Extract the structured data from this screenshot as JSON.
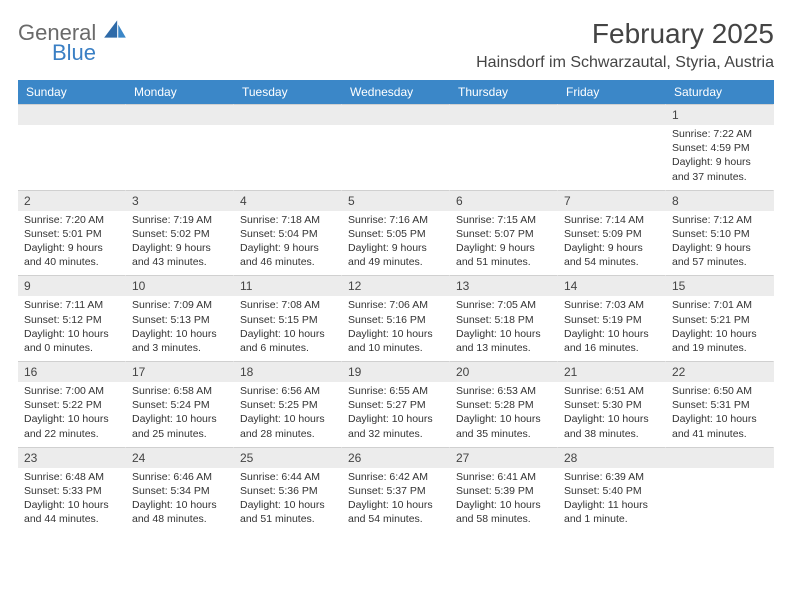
{
  "logo": {
    "text1": "General",
    "text2": "Blue"
  },
  "title": "February 2025",
  "location": "Hainsdorf im Schwarzautal, Styria, Austria",
  "colors": {
    "header_bg": "#3b87c8",
    "header_fg": "#ffffff",
    "numrow_bg": "#ececec",
    "text": "#333333",
    "title": "#444444"
  },
  "day_headers": [
    "Sunday",
    "Monday",
    "Tuesday",
    "Wednesday",
    "Thursday",
    "Friday",
    "Saturday"
  ],
  "weeks": [
    [
      {
        "n": "",
        "sr": "",
        "ss": "",
        "dl": ""
      },
      {
        "n": "",
        "sr": "",
        "ss": "",
        "dl": ""
      },
      {
        "n": "",
        "sr": "",
        "ss": "",
        "dl": ""
      },
      {
        "n": "",
        "sr": "",
        "ss": "",
        "dl": ""
      },
      {
        "n": "",
        "sr": "",
        "ss": "",
        "dl": ""
      },
      {
        "n": "",
        "sr": "",
        "ss": "",
        "dl": ""
      },
      {
        "n": "1",
        "sr": "Sunrise: 7:22 AM",
        "ss": "Sunset: 4:59 PM",
        "dl": "Daylight: 9 hours and 37 minutes."
      }
    ],
    [
      {
        "n": "2",
        "sr": "Sunrise: 7:20 AM",
        "ss": "Sunset: 5:01 PM",
        "dl": "Daylight: 9 hours and 40 minutes."
      },
      {
        "n": "3",
        "sr": "Sunrise: 7:19 AM",
        "ss": "Sunset: 5:02 PM",
        "dl": "Daylight: 9 hours and 43 minutes."
      },
      {
        "n": "4",
        "sr": "Sunrise: 7:18 AM",
        "ss": "Sunset: 5:04 PM",
        "dl": "Daylight: 9 hours and 46 minutes."
      },
      {
        "n": "5",
        "sr": "Sunrise: 7:16 AM",
        "ss": "Sunset: 5:05 PM",
        "dl": "Daylight: 9 hours and 49 minutes."
      },
      {
        "n": "6",
        "sr": "Sunrise: 7:15 AM",
        "ss": "Sunset: 5:07 PM",
        "dl": "Daylight: 9 hours and 51 minutes."
      },
      {
        "n": "7",
        "sr": "Sunrise: 7:14 AM",
        "ss": "Sunset: 5:09 PM",
        "dl": "Daylight: 9 hours and 54 minutes."
      },
      {
        "n": "8",
        "sr": "Sunrise: 7:12 AM",
        "ss": "Sunset: 5:10 PM",
        "dl": "Daylight: 9 hours and 57 minutes."
      }
    ],
    [
      {
        "n": "9",
        "sr": "Sunrise: 7:11 AM",
        "ss": "Sunset: 5:12 PM",
        "dl": "Daylight: 10 hours and 0 minutes."
      },
      {
        "n": "10",
        "sr": "Sunrise: 7:09 AM",
        "ss": "Sunset: 5:13 PM",
        "dl": "Daylight: 10 hours and 3 minutes."
      },
      {
        "n": "11",
        "sr": "Sunrise: 7:08 AM",
        "ss": "Sunset: 5:15 PM",
        "dl": "Daylight: 10 hours and 6 minutes."
      },
      {
        "n": "12",
        "sr": "Sunrise: 7:06 AM",
        "ss": "Sunset: 5:16 PM",
        "dl": "Daylight: 10 hours and 10 minutes."
      },
      {
        "n": "13",
        "sr": "Sunrise: 7:05 AM",
        "ss": "Sunset: 5:18 PM",
        "dl": "Daylight: 10 hours and 13 minutes."
      },
      {
        "n": "14",
        "sr": "Sunrise: 7:03 AM",
        "ss": "Sunset: 5:19 PM",
        "dl": "Daylight: 10 hours and 16 minutes."
      },
      {
        "n": "15",
        "sr": "Sunrise: 7:01 AM",
        "ss": "Sunset: 5:21 PM",
        "dl": "Daylight: 10 hours and 19 minutes."
      }
    ],
    [
      {
        "n": "16",
        "sr": "Sunrise: 7:00 AM",
        "ss": "Sunset: 5:22 PM",
        "dl": "Daylight: 10 hours and 22 minutes."
      },
      {
        "n": "17",
        "sr": "Sunrise: 6:58 AM",
        "ss": "Sunset: 5:24 PM",
        "dl": "Daylight: 10 hours and 25 minutes."
      },
      {
        "n": "18",
        "sr": "Sunrise: 6:56 AM",
        "ss": "Sunset: 5:25 PM",
        "dl": "Daylight: 10 hours and 28 minutes."
      },
      {
        "n": "19",
        "sr": "Sunrise: 6:55 AM",
        "ss": "Sunset: 5:27 PM",
        "dl": "Daylight: 10 hours and 32 minutes."
      },
      {
        "n": "20",
        "sr": "Sunrise: 6:53 AM",
        "ss": "Sunset: 5:28 PM",
        "dl": "Daylight: 10 hours and 35 minutes."
      },
      {
        "n": "21",
        "sr": "Sunrise: 6:51 AM",
        "ss": "Sunset: 5:30 PM",
        "dl": "Daylight: 10 hours and 38 minutes."
      },
      {
        "n": "22",
        "sr": "Sunrise: 6:50 AM",
        "ss": "Sunset: 5:31 PM",
        "dl": "Daylight: 10 hours and 41 minutes."
      }
    ],
    [
      {
        "n": "23",
        "sr": "Sunrise: 6:48 AM",
        "ss": "Sunset: 5:33 PM",
        "dl": "Daylight: 10 hours and 44 minutes."
      },
      {
        "n": "24",
        "sr": "Sunrise: 6:46 AM",
        "ss": "Sunset: 5:34 PM",
        "dl": "Daylight: 10 hours and 48 minutes."
      },
      {
        "n": "25",
        "sr": "Sunrise: 6:44 AM",
        "ss": "Sunset: 5:36 PM",
        "dl": "Daylight: 10 hours and 51 minutes."
      },
      {
        "n": "26",
        "sr": "Sunrise: 6:42 AM",
        "ss": "Sunset: 5:37 PM",
        "dl": "Daylight: 10 hours and 54 minutes."
      },
      {
        "n": "27",
        "sr": "Sunrise: 6:41 AM",
        "ss": "Sunset: 5:39 PM",
        "dl": "Daylight: 10 hours and 58 minutes."
      },
      {
        "n": "28",
        "sr": "Sunrise: 6:39 AM",
        "ss": "Sunset: 5:40 PM",
        "dl": "Daylight: 11 hours and 1 minute."
      },
      {
        "n": "",
        "sr": "",
        "ss": "",
        "dl": ""
      }
    ]
  ]
}
